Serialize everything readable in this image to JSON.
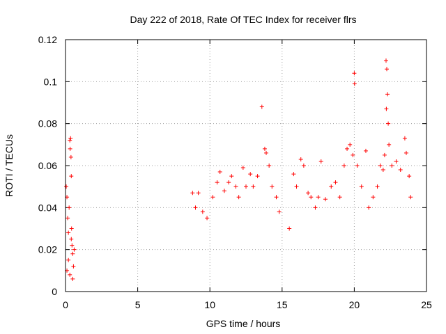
{
  "chart_data": {
    "type": "scatter",
    "title": "Day 222 of 2018, Rate Of TEC Index for receiver flrs",
    "xlabel": "GPS time / hours",
    "ylabel": "ROTI / TECUs",
    "xlim": [
      0,
      25
    ],
    "ylim": [
      0,
      0.12
    ],
    "xticks": [
      0,
      5,
      10,
      15,
      20,
      25
    ],
    "xtick_labels": [
      "0",
      "5",
      "10",
      "15",
      "20",
      "25"
    ],
    "yticks": [
      0,
      0.02,
      0.04,
      0.06,
      0.08,
      0.1,
      0.12
    ],
    "ytick_labels": [
      "0",
      "0.02",
      "0.04",
      "0.06",
      "0.08",
      "0.1",
      "0.12"
    ],
    "grid": true,
    "marker": "+",
    "color": "#ff0000",
    "series": [
      {
        "name": "ROTI",
        "points": [
          [
            0.05,
            0.05
          ],
          [
            0.1,
            0.045
          ],
          [
            0.15,
            0.035
          ],
          [
            0.2,
            0.028
          ],
          [
            0.25,
            0.04
          ],
          [
            0.3,
            0.072
          ],
          [
            0.32,
            0.068
          ],
          [
            0.35,
            0.073
          ],
          [
            0.38,
            0.064
          ],
          [
            0.4,
            0.055
          ],
          [
            0.42,
            0.03
          ],
          [
            0.45,
            0.022
          ],
          [
            0.5,
            0.018
          ],
          [
            0.55,
            0.012
          ],
          [
            0.6,
            0.02
          ],
          [
            0.1,
            0.01
          ],
          [
            0.2,
            0.015
          ],
          [
            0.3,
            0.008
          ],
          [
            0.4,
            0.025
          ],
          [
            0.5,
            0.006
          ],
          [
            8.8,
            0.047
          ],
          [
            9.0,
            0.04
          ],
          [
            9.2,
            0.047
          ],
          [
            9.5,
            0.038
          ],
          [
            9.8,
            0.035
          ],
          [
            10.2,
            0.045
          ],
          [
            10.5,
            0.052
          ],
          [
            10.7,
            0.057
          ],
          [
            11.0,
            0.048
          ],
          [
            11.3,
            0.052
          ],
          [
            11.5,
            0.055
          ],
          [
            11.8,
            0.05
          ],
          [
            12.0,
            0.045
          ],
          [
            12.3,
            0.059
          ],
          [
            12.5,
            0.05
          ],
          [
            12.8,
            0.056
          ],
          [
            13.0,
            0.05
          ],
          [
            13.3,
            0.055
          ],
          [
            13.6,
            0.088
          ],
          [
            13.8,
            0.068
          ],
          [
            13.9,
            0.066
          ],
          [
            14.1,
            0.06
          ],
          [
            14.3,
            0.05
          ],
          [
            14.6,
            0.045
          ],
          [
            14.8,
            0.038
          ],
          [
            15.5,
            0.03
          ],
          [
            15.8,
            0.056
          ],
          [
            16.0,
            0.05
          ],
          [
            16.3,
            0.063
          ],
          [
            16.5,
            0.06
          ],
          [
            16.8,
            0.047
          ],
          [
            17.0,
            0.045
          ],
          [
            17.3,
            0.04
          ],
          [
            17.5,
            0.045
          ],
          [
            17.7,
            0.062
          ],
          [
            18.0,
            0.044
          ],
          [
            18.4,
            0.05
          ],
          [
            18.7,
            0.052
          ],
          [
            19.0,
            0.045
          ],
          [
            19.3,
            0.06
          ],
          [
            19.5,
            0.068
          ],
          [
            19.7,
            0.07
          ],
          [
            19.9,
            0.065
          ],
          [
            20.0,
            0.104
          ],
          [
            20.02,
            0.099
          ],
          [
            20.2,
            0.06
          ],
          [
            20.5,
            0.05
          ],
          [
            20.8,
            0.067
          ],
          [
            21.0,
            0.04
          ],
          [
            21.3,
            0.045
          ],
          [
            21.6,
            0.05
          ],
          [
            21.8,
            0.06
          ],
          [
            22.0,
            0.058
          ],
          [
            22.1,
            0.065
          ],
          [
            22.2,
            0.11
          ],
          [
            22.25,
            0.106
          ],
          [
            22.3,
            0.094
          ],
          [
            22.22,
            0.087
          ],
          [
            22.35,
            0.08
          ],
          [
            22.4,
            0.07
          ],
          [
            22.6,
            0.06
          ],
          [
            22.9,
            0.062
          ],
          [
            23.2,
            0.058
          ],
          [
            23.5,
            0.073
          ],
          [
            23.6,
            0.066
          ],
          [
            23.8,
            0.055
          ],
          [
            23.9,
            0.045
          ]
        ]
      }
    ]
  }
}
